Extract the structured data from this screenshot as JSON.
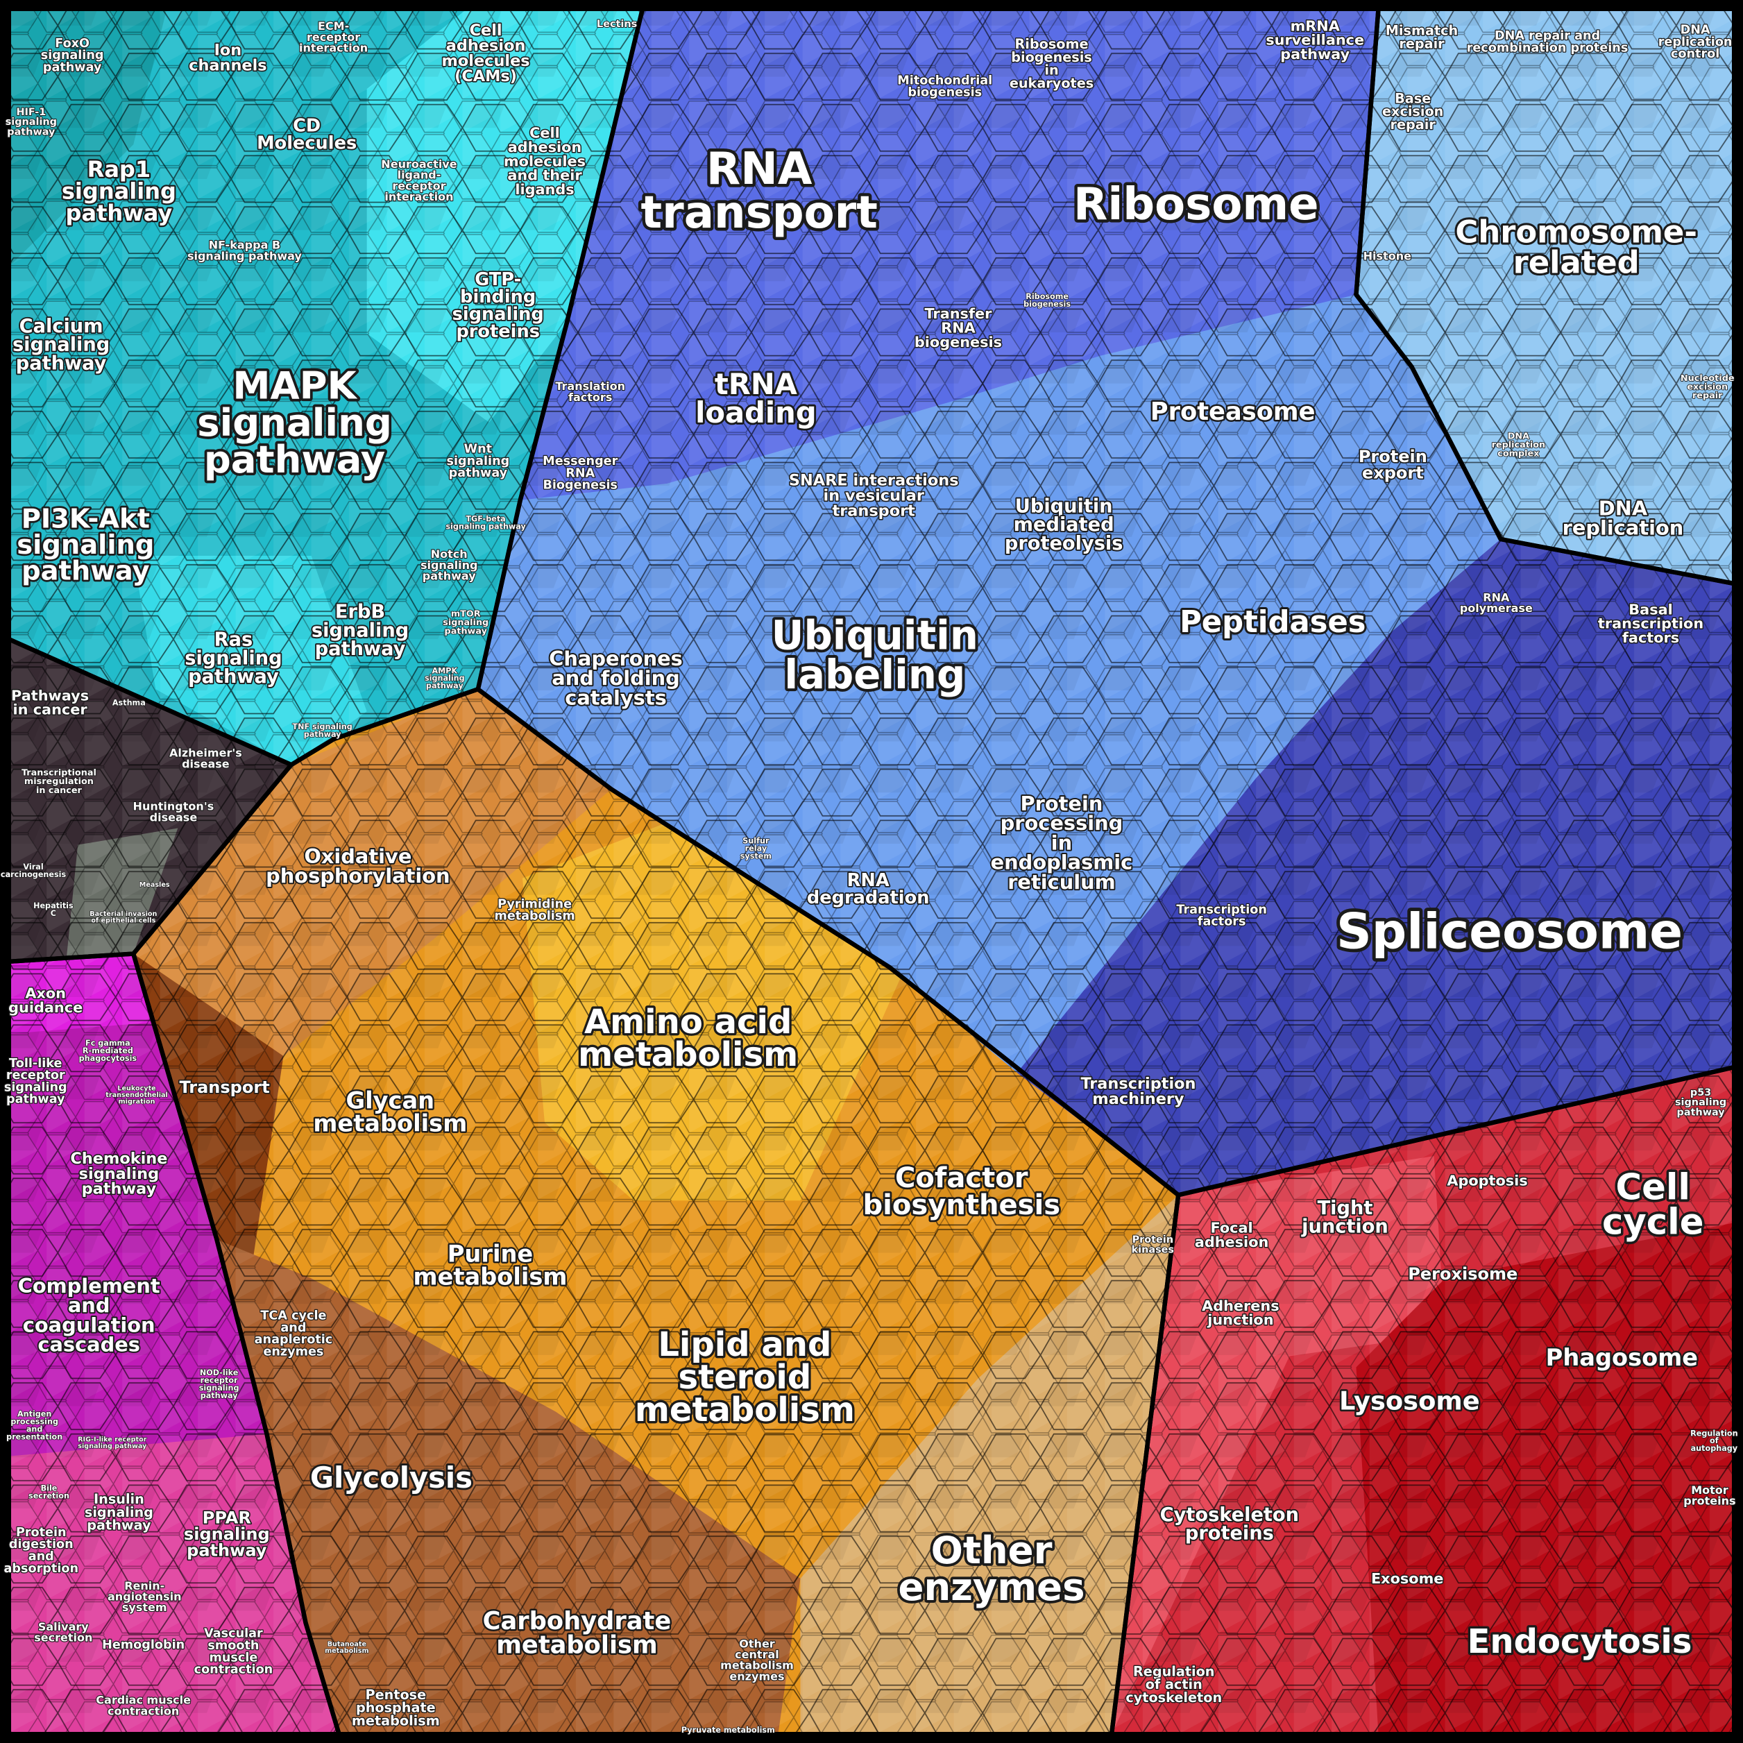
{
  "labels": [
    [
      "FoxO",
      "signaling",
      "pathway"
    ],
    [
      "Ion",
      "channels"
    ],
    [
      "ECM-",
      "receptor",
      "interaction"
    ],
    [
      "Cell",
      "adhesion",
      "molecules",
      "(CAMs)"
    ],
    [
      "Lectins"
    ],
    [
      "HIF-1",
      "signaling",
      "pathway"
    ],
    [
      "Rap1",
      "signaling",
      "pathway"
    ],
    [
      "CD",
      "Molecules"
    ],
    [
      "Neuroactive",
      "ligand-",
      "receptor",
      "interaction"
    ],
    [
      "Cell",
      "adhesion",
      "molecules",
      "and their",
      "ligands"
    ],
    [
      "NF-kappa B",
      "signaling pathway"
    ],
    [
      "GTP-",
      "binding",
      "signaling",
      "proteins"
    ],
    [
      "Calcium",
      "signaling",
      "pathway"
    ],
    [
      "MAPK",
      "signaling",
      "pathway"
    ],
    [
      "Wnt",
      "signaling",
      "pathway"
    ],
    [
      "PI3K-Akt",
      "signaling",
      "pathway"
    ],
    [
      "TGF-beta",
      "signaling pathway"
    ],
    [
      "Notch",
      "signaling",
      "pathway"
    ],
    [
      "Ras",
      "signaling",
      "pathway"
    ],
    [
      "ErbB",
      "signaling",
      "pathway"
    ],
    [
      "mTOR",
      "signaling",
      "pathway"
    ],
    [
      "AMPK",
      "signaling",
      "pathway"
    ],
    [
      "TNF signaling",
      "pathway"
    ],
    [
      "Pathways",
      "in cancer"
    ],
    [
      "Asthma"
    ],
    [
      "Alzheimer's",
      "disease"
    ],
    [
      "Transcriptional",
      "misregulation",
      "in cancer"
    ],
    [
      "Huntington's",
      "disease"
    ],
    [
      "Viral",
      "carcinogenesis"
    ],
    [
      "Measles"
    ],
    [
      "Hepatitis",
      "C"
    ],
    [
      "Bacterial invasion",
      "of epithelial cells"
    ],
    [
      "Axon",
      "guidance"
    ],
    [
      "Toll-like",
      "receptor",
      "signaling",
      "pathway"
    ],
    [
      "Fc gamma",
      "R-mediated",
      "phagocytosis"
    ],
    [
      "Leukocyte",
      "transendothelial",
      "migration"
    ],
    [
      "Chemokine",
      "signaling",
      "pathway"
    ],
    [
      "Complement",
      "and",
      "coagulation",
      "cascades"
    ],
    [
      "NOD-like",
      "receptor",
      "signaling",
      "pathway"
    ],
    [
      "Antigen",
      "processing",
      "and",
      "presentation"
    ],
    [
      "RIG-I-like receptor",
      "signaling pathway"
    ],
    [
      "Insulin",
      "signaling",
      "pathway"
    ],
    [
      "PPAR",
      "signaling",
      "pathway"
    ],
    [
      "Bile",
      "secretion"
    ],
    [
      "Protein",
      "digestion",
      "and",
      "absorption"
    ],
    [
      "Renin-",
      "angiotensin",
      "system"
    ],
    [
      "Salivary",
      "secretion"
    ],
    [
      "Hemoglobin"
    ],
    [
      "Vascular",
      "smooth",
      "muscle",
      "contraction"
    ],
    [
      "Cardiac muscle",
      "contraction"
    ],
    [
      "Oxidative",
      "phosphorylation"
    ],
    [
      "Pyrimidine",
      "metabolism"
    ],
    [
      "Transport"
    ],
    [
      "Amino acid",
      "metabolism"
    ],
    [
      "Glycan",
      "metabolism"
    ],
    [
      "Cofactor",
      "biosynthesis"
    ],
    [
      "Protein",
      "kinases"
    ],
    [
      "Purine",
      "metabolism"
    ],
    [
      "TCA cycle",
      "and",
      "anaplerotic",
      "enzymes"
    ],
    [
      "Lipid and",
      "steroid",
      "metabolism"
    ],
    [
      "Glycolysis"
    ],
    [
      "Other",
      "enzymes"
    ],
    [
      "Carbohydrate",
      "metabolism"
    ],
    [
      "Other",
      "central",
      "metabolism",
      "enzymes"
    ],
    [
      "Butanoate",
      "metabolism"
    ],
    [
      "Pentose",
      "phosphate",
      "metabolism"
    ],
    [
      "Pyruvate metabolism"
    ],
    [
      "RNA",
      "transport"
    ],
    [
      "Mitochondrial",
      "biogenesis"
    ],
    [
      "Ribosome",
      "biogenesis",
      "in",
      "eukaryotes"
    ],
    [
      "Ribosome"
    ],
    [
      "mRNA",
      "surveillance",
      "pathway"
    ],
    [
      "Transfer",
      "RNA",
      "biogenesis"
    ],
    [
      "Ribosome",
      "biogenesis"
    ],
    [
      "tRNA",
      "loading"
    ],
    [
      "Translation",
      "factors"
    ],
    [
      "Messenger",
      "RNA",
      "Biogenesis"
    ],
    [
      "Proteasome"
    ],
    [
      "SNARE interactions",
      "in vesicular",
      "transport"
    ],
    [
      "Ubiquitin",
      "mediated",
      "proteolysis"
    ],
    [
      "Protein",
      "export"
    ],
    [
      "Ubiquitin",
      "labeling"
    ],
    [
      "Peptidases"
    ],
    [
      "Chaperones",
      "and folding",
      "catalysts"
    ],
    [
      "Sulfur",
      "relay",
      "system"
    ],
    [
      "RNA",
      "degradation"
    ],
    [
      "Protein",
      "processing",
      "in",
      "endoplasmic",
      "reticulum"
    ],
    [
      "RNA",
      "polymerase"
    ],
    [
      "Basal",
      "transcription",
      "factors"
    ],
    [
      "Spliceosome"
    ],
    [
      "Transcription",
      "factors"
    ],
    [
      "Transcription",
      "machinery"
    ],
    [
      "Mismatch",
      "repair"
    ],
    [
      "DNA repair and",
      "recombination proteins"
    ],
    [
      "DNA",
      "replication",
      "control"
    ],
    [
      "Base",
      "excision",
      "repair"
    ],
    [
      "Histone"
    ],
    [
      "Chromosome-",
      "related"
    ],
    [
      "Nucleotide",
      "excision",
      "repair"
    ],
    [
      "DNA",
      "replication",
      "complex"
    ],
    [
      "DNA",
      "replication"
    ],
    [
      "p53",
      "signaling",
      "pathway"
    ],
    [
      "Apoptosis"
    ],
    [
      "Cell",
      "cycle"
    ],
    [
      "Focal",
      "adhesion"
    ],
    [
      "Tight",
      "junction"
    ],
    [
      "Peroxisome"
    ],
    [
      "Adherens",
      "junction"
    ],
    [
      "Phagosome"
    ],
    [
      "Lysosome"
    ],
    [
      "Regulation",
      "of",
      "autophagy"
    ],
    [
      "Cytoskeleton",
      "proteins"
    ],
    [
      "Motor",
      "proteins"
    ],
    [
      "Exosome"
    ],
    [
      "Endocytosis"
    ],
    [
      "Regulation",
      "of actin",
      "cytoskeleton"
    ]
  ]
}
